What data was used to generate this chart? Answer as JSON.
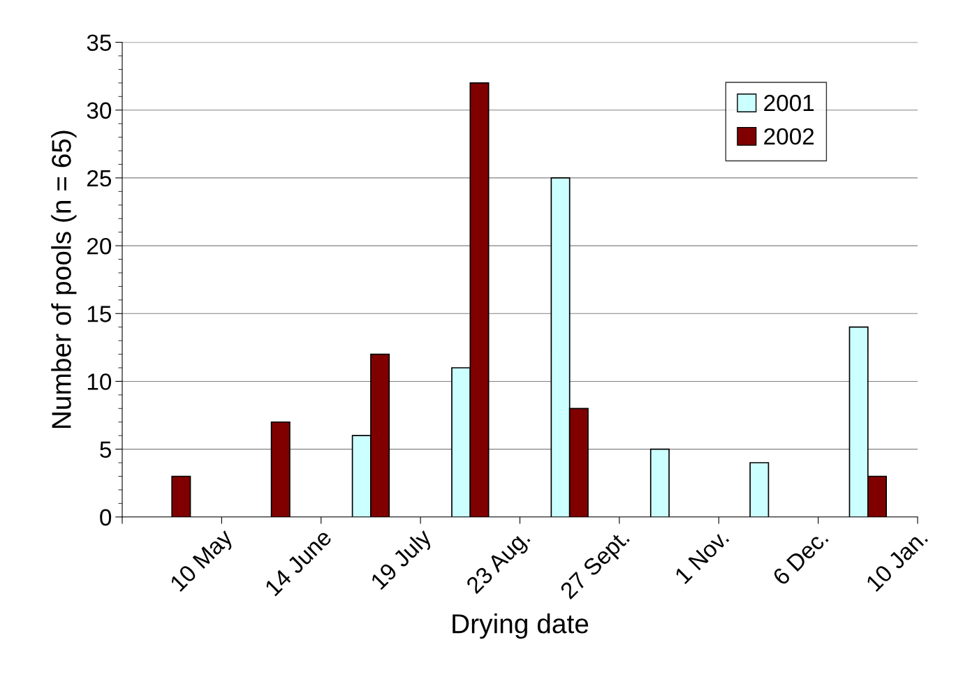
{
  "chart_data": {
    "type": "histogram",
    "xlabel": "Drying date",
    "ylabel": "Number of pools (n = 65)",
    "bins": [
      "2000-04-05",
      "2000-05-10",
      "2000-06-14",
      "2000-07-19",
      "2000-08-23",
      "2000-09-27",
      "2000-11-01",
      "2000-12-06",
      "2001-01-10"
    ],
    "xlim": [
      "2000-04-05",
      "2001-01-10"
    ],
    "xticks": [
      {
        "value": "2000-04-05",
        "label": null
      },
      {
        "value": "2000-05-10",
        "label": "10 May"
      },
      {
        "value": "2000-06-14",
        "label": "14 June"
      },
      {
        "value": "2000-07-19",
        "label": "19 July"
      },
      {
        "value": "2000-08-23",
        "label": "23 Aug."
      },
      {
        "value": "2000-09-27",
        "label": "27 Sept."
      },
      {
        "value": "2000-11-01",
        "label": "1 Nov."
      },
      {
        "value": "2000-12-06",
        "label": "6 Dec."
      },
      {
        "value": "2001-01-10",
        "label": "10 Jan."
      }
    ],
    "ylim": [
      0,
      35
    ],
    "yticks": [
      0,
      5,
      10,
      15,
      20,
      25,
      30,
      35
    ],
    "series": [
      {
        "name": "2001",
        "color": "#ccffff",
        "values": [
          null,
          null,
          6,
          11,
          25,
          5,
          4,
          14
        ]
      },
      {
        "name": "2002",
        "color": "#800000",
        "values": [
          3,
          7,
          12,
          32,
          8,
          null,
          null,
          3
        ]
      }
    ],
    "grid": "y",
    "legend": "top right"
  }
}
